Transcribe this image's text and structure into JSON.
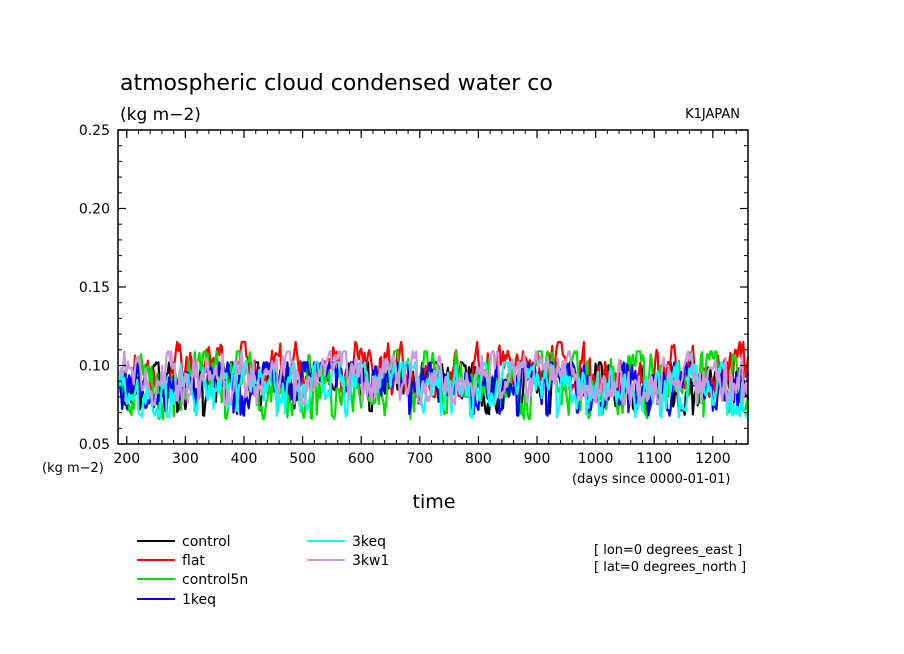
{
  "chart_data": {
    "type": "line",
    "title": "atmospheric cloud condensed water co",
    "subtitle": "(kg m−2)",
    "model_label": "K1JAPAN",
    "ylabel": "(kg m−2)",
    "xlabel": "time",
    "xunits": "(days since 0000-01-01)",
    "ylim": [
      0.05,
      0.25
    ],
    "xlim": [
      185,
      1260
    ],
    "yticks": [
      "0.05",
      "0.10",
      "0.15",
      "0.20",
      "0.25"
    ],
    "xticks": [
      "200",
      "300",
      "400",
      "500",
      "600",
      "700",
      "800",
      "900",
      "1000",
      "1100",
      "1200"
    ],
    "grid": false,
    "legend_position": "bottom",
    "annotations": [
      "[ lon=0 degrees_east ]",
      "[ lat=0 degrees_north ]"
    ],
    "series": [
      {
        "name": "control",
        "color": "#000000",
        "mean": 0.093,
        "low": 0.068,
        "high": 0.106
      },
      {
        "name": "flat",
        "color": "#ff0000",
        "mean": 0.099,
        "low": 0.08,
        "high": 0.119
      },
      {
        "name": "control5n",
        "color": "#00e000",
        "mean": 0.094,
        "low": 0.066,
        "high": 0.113
      },
      {
        "name": "1keq",
        "color": "#0000ff",
        "mean": 0.093,
        "low": 0.068,
        "high": 0.106
      },
      {
        "name": "3keq",
        "color": "#00ffff",
        "mean": 0.092,
        "low": 0.067,
        "high": 0.106
      },
      {
        "name": "3kw1",
        "color": "#cc99dd",
        "mean": 0.098,
        "low": 0.075,
        "high": 0.113
      }
    ]
  }
}
